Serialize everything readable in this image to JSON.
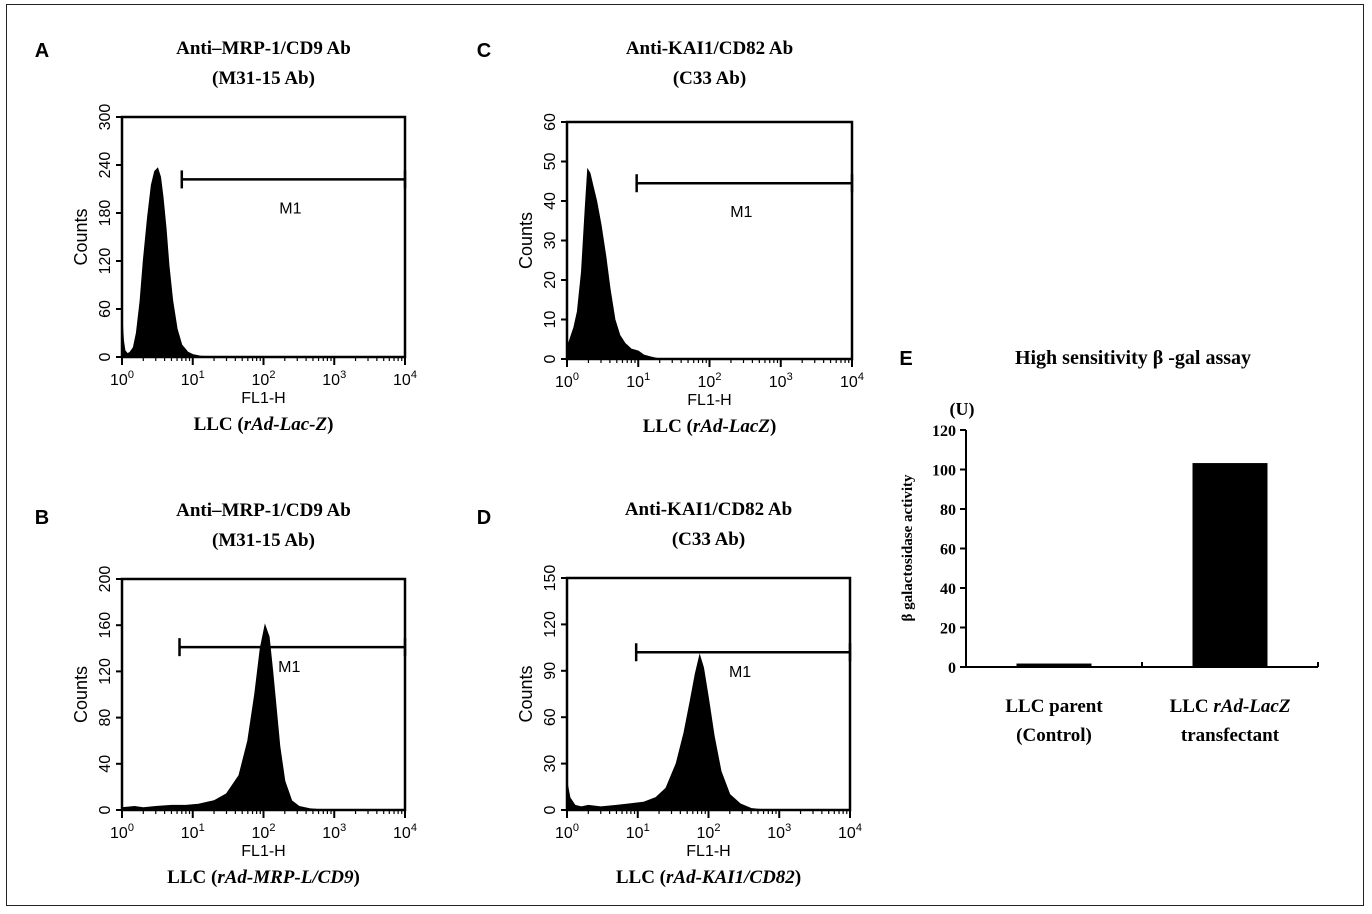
{
  "chart_data": [
    {
      "panel": "A",
      "type": "area",
      "title_line1": "Anti–MRP-1/CD9 Ab",
      "title_line2": "(M31-15 Ab)",
      "xlabel": "FL1-H",
      "ylabel": "Counts",
      "caption_prefix": "LLC (",
      "caption_italic": "rAd-Lac-Z",
      "caption_suffix": ")",
      "xscale": "log",
      "xlim": [
        1,
        10000
      ],
      "ylim": [
        0,
        300
      ],
      "yticks": [
        "0",
        "60",
        "120",
        "180",
        "240",
        "300"
      ],
      "marker_label": "M1",
      "marker_range": [
        7,
        10000
      ],
      "marker_level": 222,
      "x": [
        1,
        1.05,
        1.1,
        1.2,
        1.3,
        1.45,
        1.6,
        1.8,
        2.0,
        2.3,
        2.6,
        2.9,
        3.2,
        3.5,
        3.8,
        4.2,
        4.6,
        5.2,
        6.0,
        7.0,
        8.5,
        10,
        13,
        20,
        40,
        100,
        1000,
        10000
      ],
      "y": [
        50,
        20,
        8,
        4,
        6,
        12,
        30,
        70,
        120,
        175,
        215,
        232,
        236,
        225,
        200,
        160,
        115,
        70,
        35,
        15,
        6,
        3,
        1,
        0,
        0,
        0,
        0,
        0
      ]
    },
    {
      "panel": "B",
      "type": "area",
      "title_line1": "Anti–MRP-1/CD9 Ab",
      "title_line2": "(M31-15 Ab)",
      "xlabel": "FL1-H",
      "ylabel": "Counts",
      "caption_prefix": "LLC (",
      "caption_italic": "rAd-MRP-L/CD9",
      "caption_suffix": ")",
      "xscale": "log",
      "xlim": [
        1,
        10000
      ],
      "ylim": [
        0,
        200
      ],
      "yticks": [
        "0",
        "40",
        "80",
        "120",
        "160",
        "200"
      ],
      "marker_label": "M1",
      "marker_range": [
        6.5,
        10000
      ],
      "marker_level": 141,
      "x": [
        1,
        1.5,
        2,
        3,
        5,
        8,
        12,
        20,
        30,
        45,
        60,
        75,
        90,
        105,
        120,
        135,
        150,
        170,
        200,
        250,
        320,
        450,
        700,
        1000,
        10000
      ],
      "y": [
        2,
        3,
        2,
        3,
        4,
        4,
        5,
        8,
        14,
        30,
        60,
        100,
        140,
        160,
        150,
        120,
        90,
        55,
        25,
        8,
        3,
        1,
        0,
        0,
        0
      ]
    },
    {
      "panel": "C",
      "type": "area",
      "title_line1": "Anti-KAI1/CD82 Ab",
      "title_line2": "(C33 Ab)",
      "xlabel": "FL1-H",
      "ylabel": "Counts",
      "caption_prefix": "LLC (",
      "caption_italic": "rAd-LacZ",
      "caption_suffix": ")",
      "xscale": "log",
      "xlim": [
        1,
        10000
      ],
      "ylim": [
        0,
        60
      ],
      "yticks": [
        "0",
        "10",
        "20",
        "30",
        "40",
        "50",
        "60"
      ],
      "marker_label": "M1",
      "marker_range": [
        9.5,
        10000
      ],
      "marker_level": 44.5,
      "x": [
        1,
        1.1,
        1.25,
        1.4,
        1.6,
        1.8,
        1.95,
        2.1,
        2.3,
        2.6,
        3.0,
        3.5,
        4.0,
        4.7,
        5.5,
        6.5,
        8,
        10,
        12,
        15,
        20,
        40,
        100,
        1000,
        10000
      ],
      "y": [
        3,
        5,
        8,
        12,
        22,
        38,
        48,
        47,
        44,
        40,
        34,
        26,
        18,
        10,
        6,
        4,
        2.5,
        2,
        1,
        0.5,
        0,
        0,
        0,
        0,
        0
      ]
    },
    {
      "panel": "D",
      "type": "area",
      "title_line1": "Anti-KAI1/CD82 Ab",
      "title_line2": "(C33 Ab)",
      "xlabel": "FL1-H",
      "ylabel": "Counts",
      "caption_prefix": "LLC (",
      "caption_italic": "rAd-KAI1/CD82",
      "caption_suffix": ")",
      "xscale": "log",
      "xlim": [
        1,
        10000
      ],
      "ylim": [
        0,
        150
      ],
      "yticks": [
        "0",
        "30",
        "60",
        "90",
        "120",
        "150"
      ],
      "marker_label": "M1",
      "marker_range": [
        9.5,
        10000
      ],
      "marker_level": 102,
      "x": [
        1,
        1.1,
        1.3,
        1.6,
        2,
        3,
        5,
        8,
        12,
        18,
        25,
        35,
        45,
        55,
        65,
        75,
        85,
        100,
        120,
        150,
        200,
        280,
        400,
        600,
        1000,
        10000
      ],
      "y": [
        18,
        8,
        3,
        2,
        3,
        2,
        3,
        4,
        5,
        8,
        14,
        30,
        50,
        70,
        88,
        100,
        92,
        72,
        48,
        25,
        10,
        4,
        1,
        0,
        0,
        0
      ]
    },
    {
      "panel": "E",
      "type": "bar",
      "title": "High sensitivity β -gal assay",
      "unit": "(U)",
      "ylabel": "β galactosidase activity",
      "ylim": [
        0,
        120
      ],
      "yticks": [
        "0",
        "20",
        "40",
        "60",
        "80",
        "100",
        "120"
      ],
      "categories": [
        {
          "line1": "LLC parent",
          "line2": "(Control)",
          "line1_prefix": "",
          "line1_italic": ""
        },
        {
          "line1": "",
          "line2": "transfectant",
          "line1_prefix": "LLC ",
          "line1_italic": "rAd-LacZ"
        }
      ],
      "values": [
        1.5,
        103
      ]
    }
  ],
  "xtick_labels": [
    "10",
    "10",
    "10",
    "10",
    "10"
  ],
  "xtick_exponents": [
    "0",
    "1",
    "2",
    "3",
    "4"
  ],
  "colors": {
    "ink": "#000000",
    "fill": "#000000",
    "frame": "#222222"
  }
}
